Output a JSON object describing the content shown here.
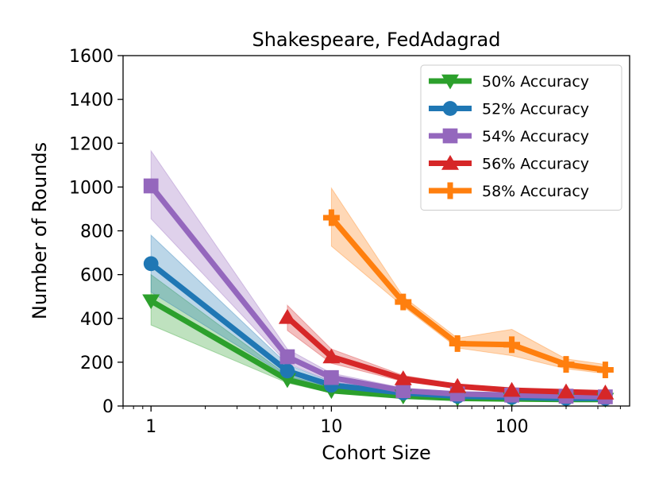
{
  "chart_data": {
    "type": "line",
    "title": "Shakespeare, FedAdagrad",
    "xlabel": "Cohort Size",
    "ylabel": "Number of Rounds",
    "xscale": "log",
    "xlim": [
      0.7,
      450
    ],
    "ylim": [
      0,
      1600
    ],
    "xticks": [
      1,
      10,
      100
    ],
    "xtick_labels": [
      "1",
      "10",
      "100"
    ],
    "yticks": [
      0,
      200,
      400,
      600,
      800,
      1000,
      1200,
      1400,
      1600
    ],
    "ytick_labels": [
      "0",
      "200",
      "400",
      "600",
      "800",
      "1000",
      "1200",
      "1400",
      "1600"
    ],
    "grid": false,
    "legend_position": "top-right",
    "series": [
      {
        "name": "50% Accuracy",
        "color": "#2ca02c",
        "marker": "triangle-down",
        "x": [
          1,
          5.7,
          10,
          25,
          50,
          100,
          200,
          330
        ],
        "y": [
          480,
          120,
          70,
          45,
          35,
          32,
          30,
          30
        ],
        "lower": [
          370,
          105,
          60,
          38,
          30,
          28,
          26,
          26
        ],
        "upper": [
          600,
          140,
          85,
          52,
          40,
          37,
          34,
          34
        ]
      },
      {
        "name": "52% Accuracy",
        "color": "#1f77b4",
        "marker": "circle",
        "x": [
          1,
          5.7,
          10,
          25,
          50,
          100,
          200,
          330
        ],
        "y": [
          650,
          160,
          95,
          60,
          45,
          40,
          35,
          35
        ],
        "lower": [
          520,
          135,
          80,
          52,
          38,
          34,
          30,
          30
        ],
        "upper": [
          780,
          190,
          110,
          70,
          52,
          46,
          40,
          40
        ]
      },
      {
        "name": "54% Accuracy",
        "color": "#9467bd",
        "marker": "square",
        "x": [
          1,
          5.7,
          10,
          25,
          50,
          100,
          200,
          330
        ],
        "y": [
          1005,
          225,
          130,
          70,
          55,
          50,
          45,
          42
        ],
        "lower": [
          855,
          195,
          112,
          60,
          48,
          44,
          40,
          37
        ],
        "upper": [
          1165,
          260,
          150,
          82,
          64,
          58,
          52,
          48
        ]
      },
      {
        "name": "56% Accuracy",
        "color": "#d62728",
        "marker": "triangle-up",
        "x": [
          5.7,
          10,
          25,
          50,
          100,
          200,
          330
        ],
        "y": [
          405,
          225,
          125,
          90,
          72,
          65,
          60
        ],
        "lower": [
          345,
          195,
          112,
          80,
          64,
          58,
          54
        ],
        "upper": [
          460,
          260,
          140,
          100,
          82,
          72,
          68
        ]
      },
      {
        "name": "58% Accuracy",
        "color": "#ff7f0e",
        "marker": "plus",
        "x": [
          10,
          25,
          50,
          100,
          200,
          330
        ],
        "y": [
          860,
          475,
          285,
          280,
          190,
          165
        ],
        "lower": [
          730,
          455,
          265,
          230,
          170,
          148
        ],
        "upper": [
          995,
          500,
          310,
          350,
          215,
          190
        ]
      }
    ]
  }
}
